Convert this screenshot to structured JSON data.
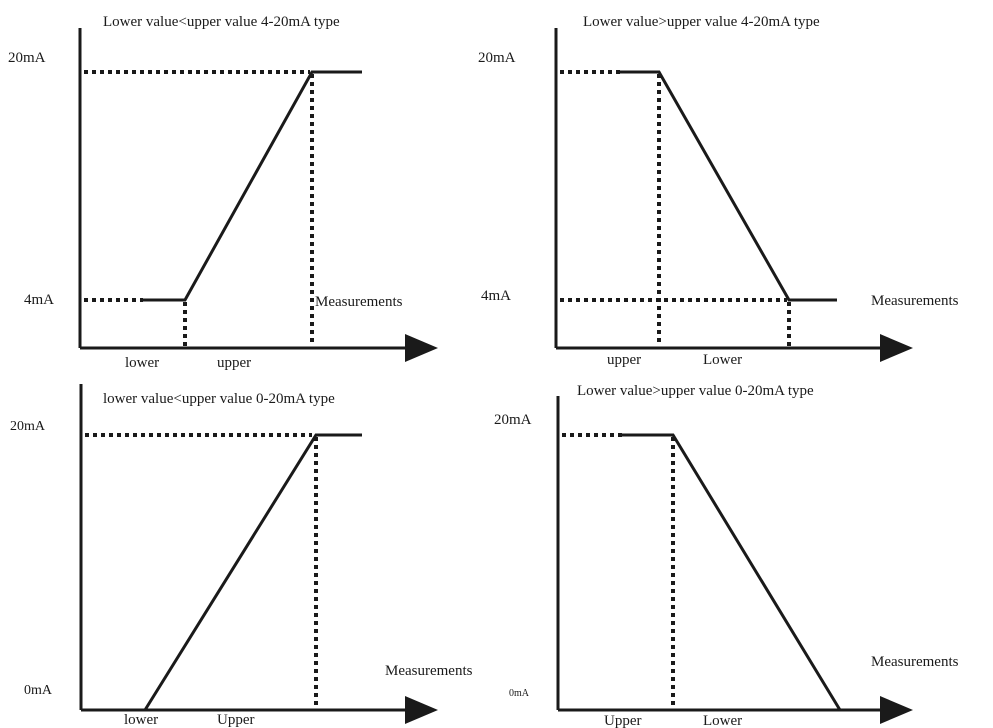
{
  "panels": [
    {
      "title": "Lower  value<upper value 4-20mA type",
      "y_labels": {
        "top": "20mA",
        "bottom": "4mA"
      },
      "x_labels": [
        "lower",
        "upper"
      ],
      "axis_label": "Measurements"
    },
    {
      "title": "Lower  value>upper value 4-20mA type",
      "y_labels": {
        "top": "20mA",
        "bottom": "4mA"
      },
      "x_labels": [
        "upper",
        "Lower"
      ],
      "axis_label": "Measurements"
    },
    {
      "title": "lower  value<upper value 0-20mA type",
      "y_labels": {
        "top": "20mA",
        "bottom": "0mA"
      },
      "x_labels": [
        "lower",
        "Upper"
      ],
      "axis_label": "Measurements"
    },
    {
      "title": "Lower  value>upper value 0-20mA type",
      "y_labels": {
        "top": "20mA",
        "bottom": "0mA"
      },
      "x_labels": [
        "Upper",
        "Lower"
      ],
      "axis_label": "Measurements"
    }
  ],
  "colors": {
    "line": "#1a1a1a",
    "background": "#ffffff"
  }
}
